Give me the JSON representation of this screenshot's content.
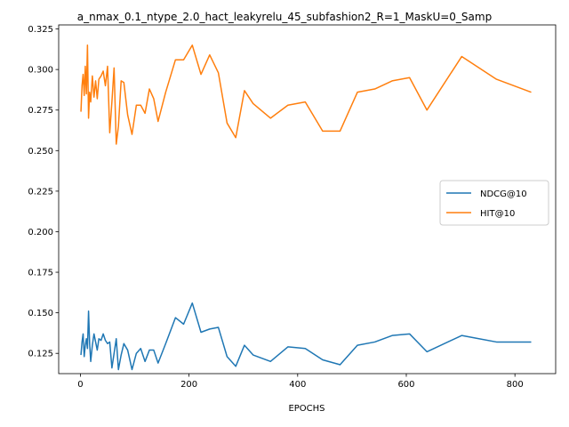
{
  "chart_data": {
    "type": "line",
    "title": "a_nmax_0.1_ntype_2.0_hact_leakyrelu_45_subfashion2_R=1_MaskU=0_Samp",
    "xlabel": "EPOCHS",
    "ylabel": "",
    "xlim": [
      -40,
      875
    ],
    "ylim": [
      0.1125,
      0.3275
    ],
    "xticks": [
      0,
      200,
      400,
      600,
      800
    ],
    "yticks": [
      0.125,
      0.15,
      0.175,
      0.2,
      0.225,
      0.25,
      0.275,
      0.3,
      0.325
    ],
    "xtick_labels": [
      "0",
      "200",
      "400",
      "600",
      "800"
    ],
    "ytick_labels": [
      "0.125",
      "0.150",
      "0.175",
      "0.200",
      "0.225",
      "0.250",
      "0.275",
      "0.300",
      "0.325"
    ],
    "grid": false,
    "legend_position": "center-right",
    "series": [
      {
        "name": "NDCG@10",
        "color": "#1f77b4",
        "x": [
          1,
          3,
          5,
          7,
          9,
          11,
          13,
          15,
          17,
          19,
          22,
          25,
          28,
          31,
          34,
          38,
          42,
          46,
          50,
          54,
          58,
          62,
          66,
          70,
          75,
          80,
          87,
          95,
          103,
          111,
          119,
          127,
          135,
          143,
          157,
          175,
          190,
          206,
          222,
          238,
          254,
          270,
          286,
          302,
          318,
          350,
          382,
          414,
          446,
          478,
          510,
          542,
          574,
          606,
          638,
          702,
          766,
          830
        ],
        "y": [
          0.124,
          0.132,
          0.137,
          0.123,
          0.13,
          0.134,
          0.128,
          0.151,
          0.131,
          0.12,
          0.13,
          0.137,
          0.132,
          0.127,
          0.134,
          0.133,
          0.137,
          0.133,
          0.131,
          0.132,
          0.116,
          0.125,
          0.134,
          0.115,
          0.124,
          0.131,
          0.127,
          0.115,
          0.125,
          0.128,
          0.12,
          0.127,
          0.127,
          0.119,
          0.131,
          0.147,
          0.143,
          0.156,
          0.138,
          0.14,
          0.141,
          0.123,
          0.117,
          0.13,
          0.124,
          0.12,
          0.129,
          0.128,
          0.121,
          0.118,
          0.13,
          0.132,
          0.136,
          0.137,
          0.126,
          0.136,
          0.132,
          0.132
        ]
      },
      {
        "name": "HIT@10",
        "color": "#ff7f0e",
        "x": [
          1,
          3,
          5,
          7,
          9,
          11,
          13,
          15,
          17,
          19,
          22,
          25,
          28,
          31,
          34,
          38,
          42,
          46,
          50,
          54,
          58,
          62,
          66,
          70,
          75,
          80,
          87,
          95,
          103,
          111,
          119,
          127,
          135,
          143,
          157,
          175,
          190,
          206,
          222,
          238,
          254,
          270,
          286,
          302,
          318,
          350,
          382,
          414,
          446,
          478,
          510,
          542,
          574,
          606,
          638,
          702,
          766,
          830
        ],
        "y": [
          0.274,
          0.29,
          0.297,
          0.284,
          0.302,
          0.285,
          0.315,
          0.27,
          0.286,
          0.28,
          0.296,
          0.283,
          0.293,
          0.282,
          0.294,
          0.296,
          0.299,
          0.29,
          0.302,
          0.261,
          0.28,
          0.301,
          0.254,
          0.265,
          0.293,
          0.292,
          0.272,
          0.26,
          0.278,
          0.278,
          0.273,
          0.288,
          0.282,
          0.268,
          0.286,
          0.306,
          0.306,
          0.315,
          0.297,
          0.309,
          0.298,
          0.267,
          0.258,
          0.287,
          0.279,
          0.27,
          0.278,
          0.28,
          0.262,
          0.262,
          0.286,
          0.288,
          0.293,
          0.295,
          0.275,
          0.308,
          0.294,
          0.286
        ]
      }
    ]
  }
}
